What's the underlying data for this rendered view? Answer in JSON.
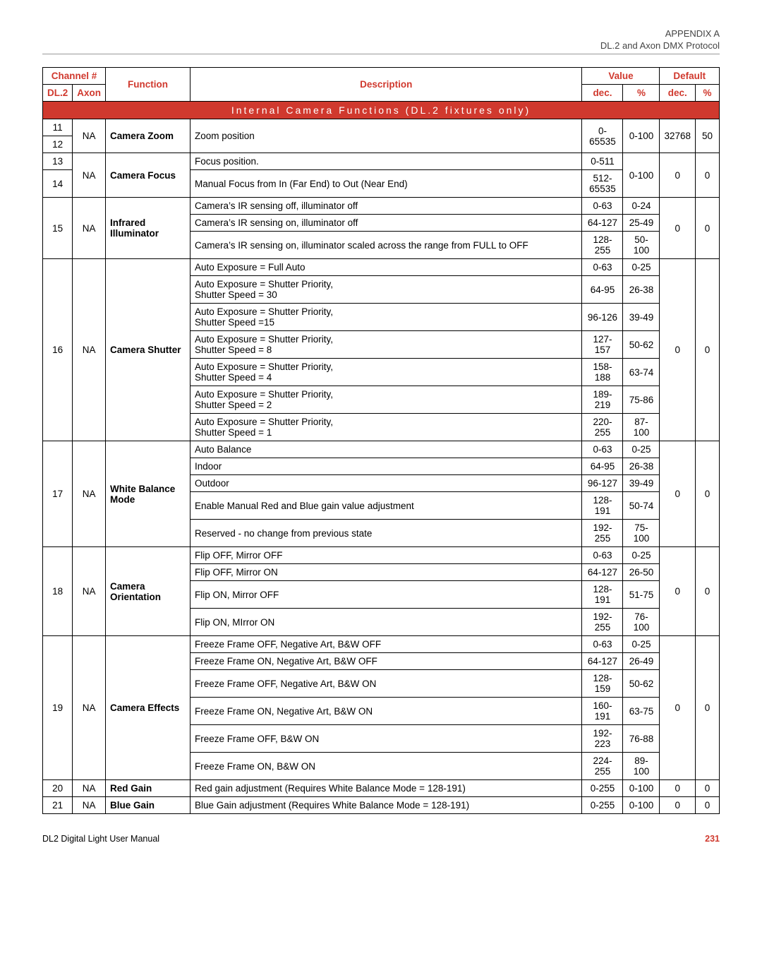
{
  "header": {
    "appendix": "APPENDIX   A",
    "subtitle": "DL.2 and Axon DMX Protocol"
  },
  "footer": {
    "left": "DL2 Digital Light User Manual",
    "page": "231"
  },
  "columns": {
    "channel": "Channel #",
    "dl2": "DL.2",
    "axon": "Axon",
    "function": "Function",
    "description": "Description",
    "value": "Value",
    "dec": "dec.",
    "pct": "%",
    "default": "Default"
  },
  "section_title": "Internal Camera Functions (DL.2 fixtures only)",
  "blocks": [
    {
      "dl2": [
        "11",
        "12"
      ],
      "axon": "NA",
      "function": "Camera Zoom",
      "rows": [
        {
          "desc": "Zoom position",
          "dec": "0-65535",
          "pct": "0-100"
        }
      ],
      "def_dec": "32768",
      "def_pct": "50"
    },
    {
      "dl2": [
        "13",
        "14"
      ],
      "axon": "NA",
      "function": "Camera Focus",
      "rows": [
        {
          "desc": "Focus position.",
          "dec": "0-511",
          "pct_span_first": true
        },
        {
          "desc": "Manual Focus from In (Far End) to Out (Near End)",
          "dec": "512-65535"
        }
      ],
      "pct": "0-100",
      "def_dec": "0",
      "def_pct": "0"
    },
    {
      "dl2": [
        "15"
      ],
      "axon": "NA",
      "function": "Infrared Illuminator",
      "rows": [
        {
          "desc": "Camera’s IR sensing off, illuminator off",
          "dec": "0-63",
          "pct": "0-24"
        },
        {
          "desc": "Camera’s IR sensing on, illuminator off",
          "dec": "64-127",
          "pct": "25-49"
        },
        {
          "desc": "Camera’s IR sensing on, illuminator scaled across the range from FULL to OFF",
          "dec": "128-255",
          "pct": "50-100"
        }
      ],
      "def_dec": "0",
      "def_pct": "0"
    },
    {
      "dl2": [
        "16"
      ],
      "axon": "NA",
      "function": "Camera Shutter",
      "rows": [
        {
          "desc": "Auto Exposure = Full Auto",
          "dec": "0-63",
          "pct": "0-25"
        },
        {
          "desc": "Auto Exposure = Shutter Priority,\nShutter Speed = 30",
          "dec": "64-95",
          "pct": "26-38"
        },
        {
          "desc": "Auto Exposure = Shutter Priority,\nShutter Speed =15",
          "dec": "96-126",
          "pct": "39-49"
        },
        {
          "desc": "Auto Exposure = Shutter Priority,\nShutter Speed = 8",
          "dec": "127-157",
          "pct": "50-62"
        },
        {
          "desc": "Auto Exposure = Shutter Priority,\nShutter Speed = 4",
          "dec": "158-188",
          "pct": "63-74"
        },
        {
          "desc": "Auto Exposure = Shutter Priority,\nShutter Speed = 2",
          "dec": "189-219",
          "pct": "75-86"
        },
        {
          "desc": "Auto Exposure = Shutter Priority,\nShutter Speed = 1",
          "dec": "220-255",
          "pct": "87-100"
        }
      ],
      "def_dec": "0",
      "def_pct": "0"
    },
    {
      "dl2": [
        "17"
      ],
      "axon": "NA",
      "function": "White Balance Mode",
      "rows": [
        {
          "desc": "Auto Balance",
          "dec": "0-63",
          "pct": "0-25"
        },
        {
          "desc": "Indoor",
          "dec": "64-95",
          "pct": "26-38"
        },
        {
          "desc": "Outdoor",
          "dec": "96-127",
          "pct": "39-49"
        },
        {
          "desc": "Enable Manual Red and Blue gain value adjustment",
          "dec": "128-191",
          "pct": "50-74"
        },
        {
          "desc": "Reserved - no change from previous state",
          "dec": "192-255",
          "pct": "75-100"
        }
      ],
      "def_dec": "0",
      "def_pct": "0"
    },
    {
      "dl2": [
        "18"
      ],
      "axon": "NA",
      "function": "Camera Orientation",
      "rows": [
        {
          "desc": "Flip OFF, Mirror OFF",
          "dec": "0-63",
          "pct": "0-25"
        },
        {
          "desc": "Flip OFF, Mirror ON",
          "dec": "64-127",
          "pct": "26-50"
        },
        {
          "desc": "Flip ON, Mirror OFF",
          "dec": "128-191",
          "pct": "51-75"
        },
        {
          "desc": "Flip ON, MIrror ON",
          "dec": "192-255",
          "pct": "76-100"
        }
      ],
      "def_dec": "0",
      "def_pct": "0"
    },
    {
      "dl2": [
        "19"
      ],
      "axon": "NA",
      "function": "Camera Effects",
      "rows": [
        {
          "desc": "Freeze Frame OFF, Negative Art, B&W OFF",
          "dec": "0-63",
          "pct": "0-25"
        },
        {
          "desc": "Freeze Frame ON, Negative Art, B&W OFF",
          "dec": "64-127",
          "pct": "26-49"
        },
        {
          "desc": "Freeze Frame OFF, Negative Art, B&W ON",
          "dec": "128-159",
          "pct": "50-62"
        },
        {
          "desc": "Freeze Frame ON, Negative Art, B&W ON",
          "dec": "160-191",
          "pct": "63-75"
        },
        {
          "desc": "Freeze Frame OFF, B&W ON",
          "dec": "192-223",
          "pct": "76-88"
        },
        {
          "desc": "Freeze Frame ON, B&W ON",
          "dec": "224-255",
          "pct": "89-100"
        }
      ],
      "def_dec": "0",
      "def_pct": "0"
    },
    {
      "dl2": [
        "20"
      ],
      "axon": "NA",
      "function": "Red Gain",
      "rows": [
        {
          "desc": "Red gain adjustment (Requires White Balance Mode = 128-191)",
          "dec": "0-255",
          "pct": "0-100"
        }
      ],
      "def_dec": "0",
      "def_pct": "0"
    },
    {
      "dl2": [
        "21"
      ],
      "axon": "NA",
      "function": "Blue Gain",
      "rows": [
        {
          "desc": "Blue Gain adjustment (Requires White Balance Mode = 128-191)",
          "dec": "0-255",
          "pct": "0-100"
        }
      ],
      "def_dec": "0",
      "def_pct": "0"
    }
  ]
}
